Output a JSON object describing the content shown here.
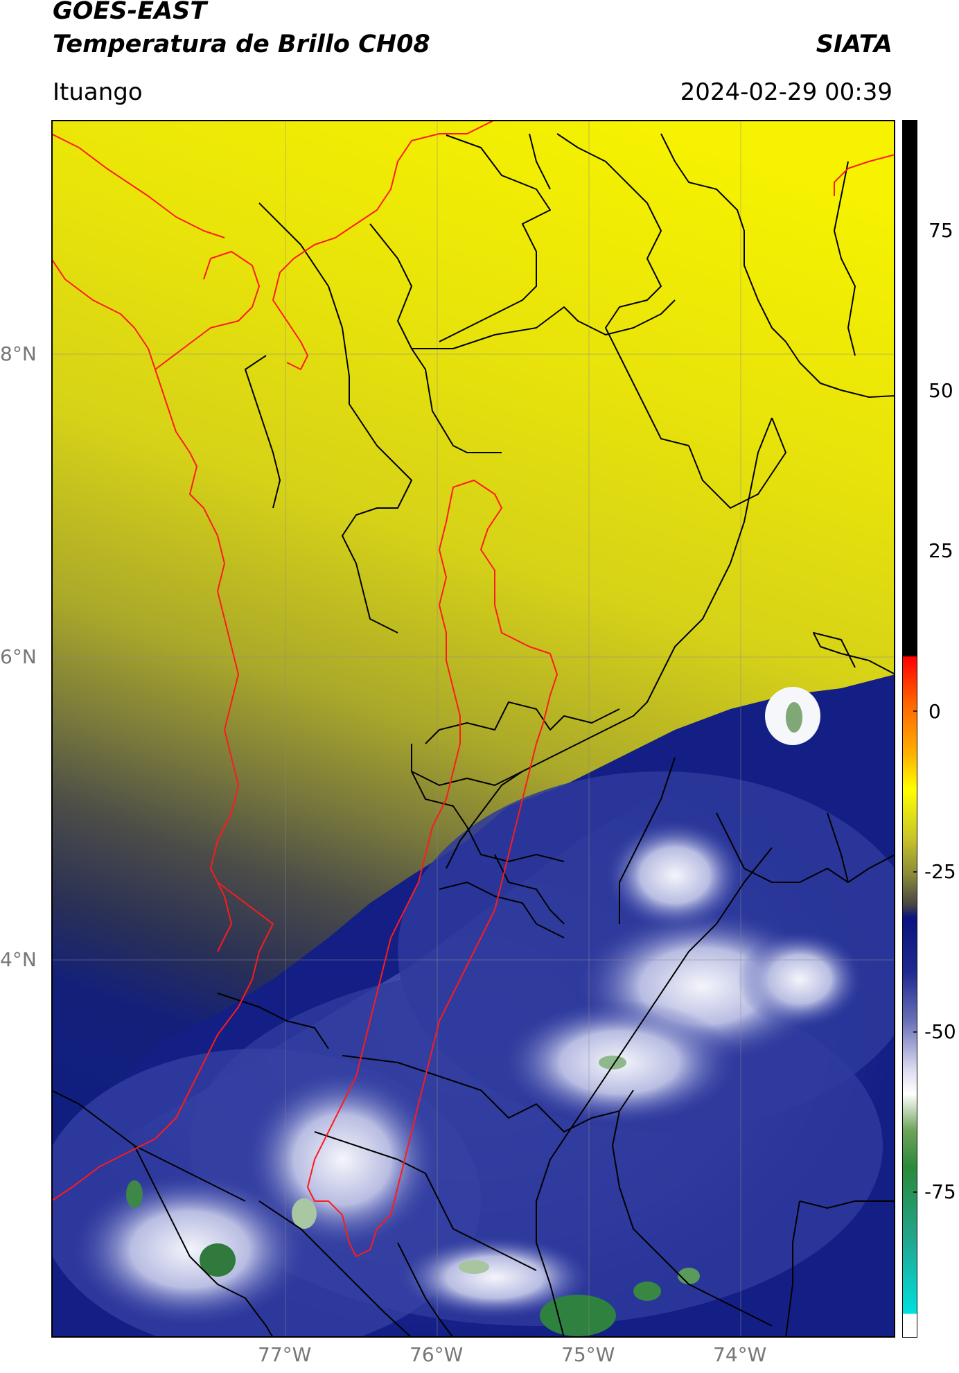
{
  "header": {
    "satellite": "GOES-EAST",
    "product": "Temperatura de Brillo CH08",
    "org": "SIATA",
    "place": "Ituango",
    "datetime": "2024-02-29 00:39"
  },
  "map": {
    "lat_ticks": [
      "8°N",
      "6°N",
      "4°N"
    ],
    "lon_ticks": [
      "77°W",
      "76°W",
      "75°W",
      "74°W"
    ],
    "colors": {
      "land_boundary": "#000000",
      "coast_and_basin": "#ff0000",
      "warm": "#f2ef00",
      "mid": "#4a4a3c",
      "cold": "#0d1a8c",
      "very_cold": "#ffffff",
      "coldest": "#2f8a3a"
    }
  },
  "colorbar": {
    "ticks": [
      "75",
      "50",
      "25",
      "0",
      "-25",
      "-50",
      "-75"
    ],
    "range": [
      -90,
      90
    ]
  }
}
